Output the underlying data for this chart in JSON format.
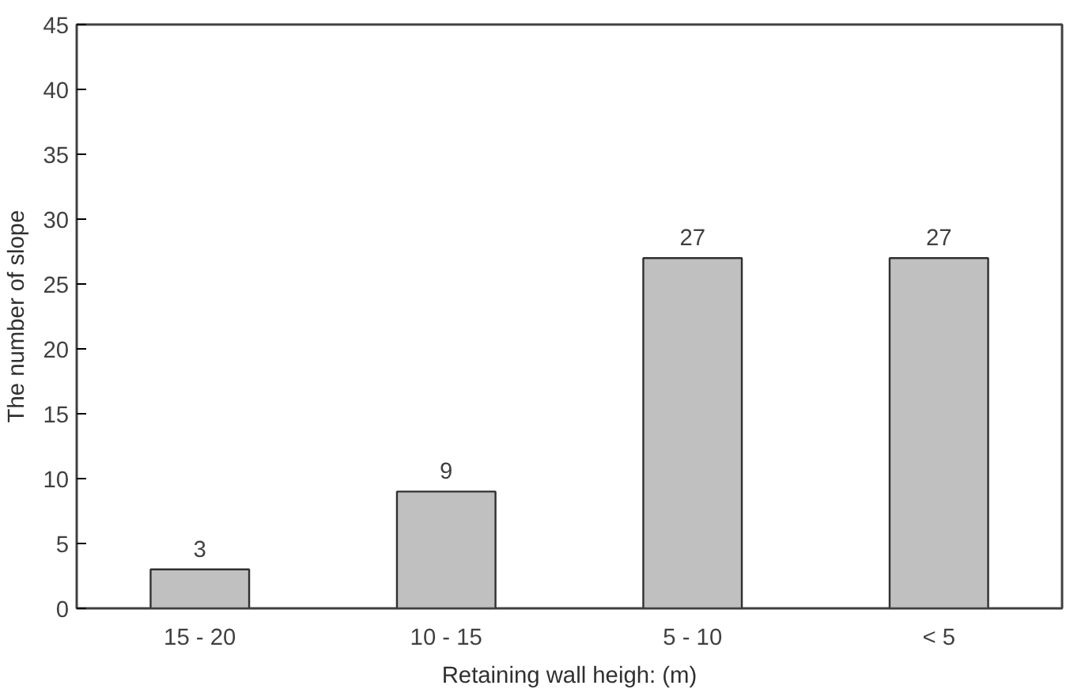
{
  "chart_data": {
    "type": "bar",
    "xlabel": "Retaining wall heigh: (m)",
    "ylabel": "The number of slope",
    "categories": [
      "15 - 20",
      "10 - 15",
      "5 - 10",
      "< 5"
    ],
    "values": [
      3,
      9,
      27,
      27
    ],
    "color": "#c0c0c0",
    "ylim": [
      0,
      45
    ],
    "yticks": [
      0,
      5,
      10,
      15,
      20,
      25,
      30,
      35,
      40,
      45
    ],
    "data_labels": true,
    "grid": false
  }
}
